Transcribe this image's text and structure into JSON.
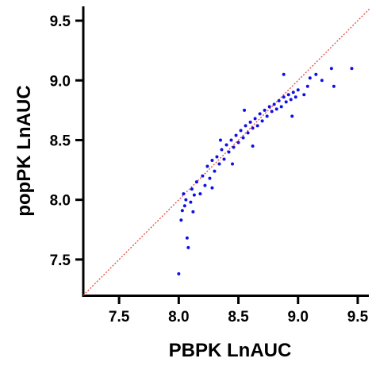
{
  "chart_data": {
    "type": "scatter",
    "xlabel": "PBPK LnAUC",
    "ylabel": "popPK LnAUC",
    "xlim": [
      7.2,
      9.6
    ],
    "ylim": [
      7.2,
      9.6
    ],
    "x_ticks": [
      7.5,
      8.0,
      8.5,
      9.0,
      9.5
    ],
    "y_ticks": [
      7.5,
      8.0,
      8.5,
      9.0,
      9.5
    ],
    "x_tick_labels": [
      "7.5",
      "8.0",
      "8.5",
      "9.0",
      "9.5"
    ],
    "y_tick_labels": [
      "7.5",
      "8.0",
      "8.5",
      "9.0",
      "9.5"
    ],
    "grid": false,
    "point_color": "#1010e6",
    "reference_line": {
      "style": "dotted",
      "color": "#e63b2e",
      "x": [
        7.2,
        9.6
      ],
      "y": [
        7.2,
        9.6
      ]
    },
    "series": [
      {
        "values": [
          [
            8.0,
            7.38
          ],
          [
            8.02,
            7.83
          ],
          [
            8.03,
            7.91
          ],
          [
            8.05,
            7.95
          ],
          [
            8.04,
            8.05
          ],
          [
            8.07,
            7.68
          ],
          [
            8.08,
            7.6
          ],
          [
            8.1,
            7.98
          ],
          [
            8.12,
            7.9
          ],
          [
            8.11,
            8.09
          ],
          [
            8.13,
            8.04
          ],
          [
            8.15,
            8.15
          ],
          [
            8.06,
            8.0
          ],
          [
            8.18,
            8.05
          ],
          [
            8.2,
            8.2
          ],
          [
            8.22,
            8.12
          ],
          [
            8.24,
            8.28
          ],
          [
            8.26,
            8.18
          ],
          [
            8.28,
            8.33
          ],
          [
            8.3,
            8.24
          ],
          [
            8.32,
            8.36
          ],
          [
            8.34,
            8.3
          ],
          [
            8.36,
            8.42
          ],
          [
            8.38,
            8.34
          ],
          [
            8.4,
            8.46
          ],
          [
            8.42,
            8.4
          ],
          [
            8.44,
            8.5
          ],
          [
            8.46,
            8.44
          ],
          [
            8.48,
            8.54
          ],
          [
            8.5,
            8.48
          ],
          [
            8.52,
            8.58
          ],
          [
            8.54,
            8.52
          ],
          [
            8.56,
            8.62
          ],
          [
            8.58,
            8.56
          ],
          [
            8.6,
            8.65
          ],
          [
            8.62,
            8.6
          ],
          [
            8.64,
            8.68
          ],
          [
            8.66,
            8.62
          ],
          [
            8.68,
            8.72
          ],
          [
            8.7,
            8.66
          ],
          [
            8.72,
            8.75
          ],
          [
            8.74,
            8.7
          ],
          [
            8.76,
            8.78
          ],
          [
            8.78,
            8.74
          ],
          [
            8.8,
            8.8
          ],
          [
            8.82,
            8.76
          ],
          [
            8.84,
            8.83
          ],
          [
            8.86,
            8.78
          ],
          [
            8.88,
            8.86
          ],
          [
            8.9,
            8.82
          ],
          [
            8.92,
            8.88
          ],
          [
            8.94,
            8.84
          ],
          [
            8.96,
            8.9
          ],
          [
            8.98,
            8.86
          ],
          [
            9.0,
            8.92
          ],
          [
            9.05,
            8.88
          ],
          [
            9.08,
            8.95
          ],
          [
            9.1,
            9.02
          ],
          [
            9.15,
            9.05
          ],
          [
            9.2,
            9.0
          ],
          [
            9.28,
            9.1
          ],
          [
            9.45,
            9.1
          ],
          [
            9.3,
            8.95
          ],
          [
            8.88,
            9.05
          ],
          [
            8.95,
            8.7
          ],
          [
            8.62,
            8.45
          ],
          [
            8.55,
            8.75
          ],
          [
            8.35,
            8.5
          ],
          [
            8.45,
            8.3
          ],
          [
            8.28,
            8.1
          ]
        ]
      }
    ]
  }
}
